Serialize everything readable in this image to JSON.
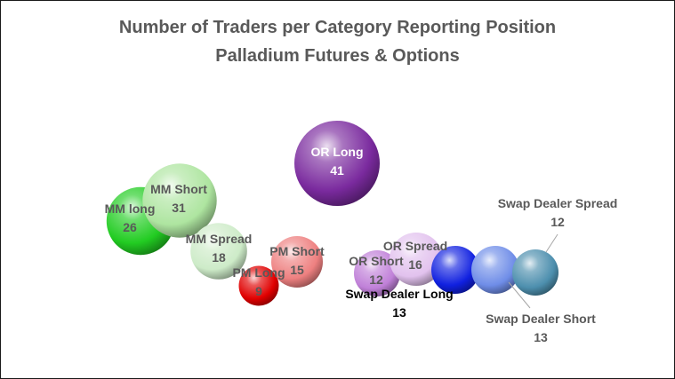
{
  "chart_data": {
    "type": "bubble",
    "title": "Number of Traders per Category Reporting Position",
    "subtitle": "Palladium Futures & Options",
    "series": [
      {
        "name": "MM long",
        "value": 26,
        "color": "#22cc22"
      },
      {
        "name": "MM Short",
        "value": 31,
        "color": "#aee5a0"
      },
      {
        "name": "MM Spread",
        "value": 18,
        "color": "#cdebc8"
      },
      {
        "name": "PM Long",
        "value": 9,
        "color": "#e00000"
      },
      {
        "name": "PM Short",
        "value": 15,
        "color": "#ee8080"
      },
      {
        "name": "OR Long",
        "value": 41,
        "color": "#7a2a9e"
      },
      {
        "name": "OR Short",
        "value": 12,
        "color": "#c080d8"
      },
      {
        "name": "OR Spread",
        "value": 16,
        "color": "#e2c2ee"
      },
      {
        "name": "Swap Dealer Long",
        "value": 13,
        "color": "#1020e0"
      },
      {
        "name": "Swap Dealer Short",
        "value": 13,
        "color": "#6f8de8"
      },
      {
        "name": "Swap Dealer Spread",
        "value": 12,
        "color": "#4d8fae"
      }
    ]
  }
}
